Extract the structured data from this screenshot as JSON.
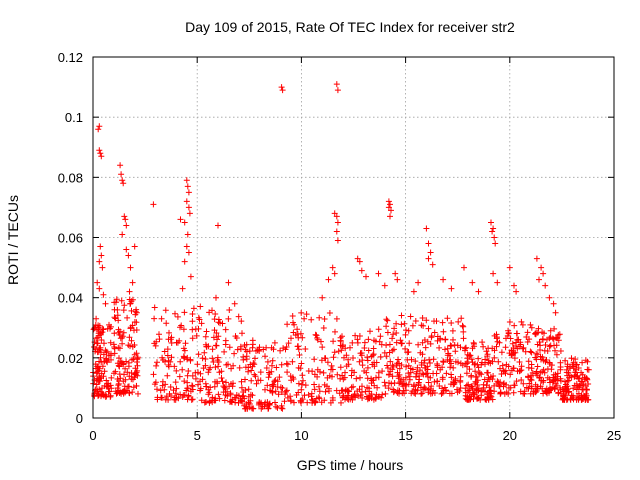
{
  "chart_data": {
    "type": "scatter",
    "title": "Day 109 of 2015, Rate Of TEC Index for receiver str2",
    "xlabel": "GPS time / hours",
    "ylabel": "ROTI / TECUs",
    "xlim": [
      0,
      25
    ],
    "ylim": [
      0,
      0.12
    ],
    "xticks": [
      0,
      5,
      10,
      15,
      20,
      25
    ],
    "xtick_labels": [
      "0",
      "5",
      "10",
      "15",
      "20",
      "25"
    ],
    "yticks": [
      0,
      0.02,
      0.04,
      0.06,
      0.08,
      0.1,
      0.12
    ],
    "ytick_labels": [
      "0",
      "0.02",
      "0.04",
      "0.06",
      "0.08",
      "0.1",
      "0.12"
    ],
    "grid": true,
    "marker": "plus",
    "color": "#ff0000",
    "series": [
      {
        "name": "ROTI",
        "points": [
          [
            0.25,
            0.096
          ],
          [
            0.3,
            0.097
          ],
          [
            0.3,
            0.089
          ],
          [
            0.35,
            0.088
          ],
          [
            0.4,
            0.087
          ],
          [
            0.35,
            0.057
          ],
          [
            0.4,
            0.054
          ],
          [
            0.3,
            0.052
          ],
          [
            0.45,
            0.05
          ],
          [
            0.2,
            0.045
          ],
          [
            0.3,
            0.043
          ],
          [
            0.5,
            0.041
          ],
          [
            0.6,
            0.038
          ],
          [
            0.15,
            0.033
          ],
          [
            0.1,
            0.03
          ],
          [
            1.3,
            0.084
          ],
          [
            1.35,
            0.081
          ],
          [
            1.4,
            0.079
          ],
          [
            1.45,
            0.078
          ],
          [
            1.5,
            0.067
          ],
          [
            1.55,
            0.066
          ],
          [
            1.6,
            0.064
          ],
          [
            1.4,
            0.061
          ],
          [
            1.6,
            0.056
          ],
          [
            1.7,
            0.054
          ],
          [
            2.0,
            0.057
          ],
          [
            1.8,
            0.05
          ],
          [
            1.9,
            0.045
          ],
          [
            1.75,
            0.042
          ],
          [
            2.1,
            0.035
          ],
          [
            2.9,
            0.071
          ],
          [
            4.2,
            0.066
          ],
          [
            4.5,
            0.079
          ],
          [
            4.55,
            0.077
          ],
          [
            4.6,
            0.075
          ],
          [
            4.5,
            0.072
          ],
          [
            4.6,
            0.07
          ],
          [
            4.65,
            0.068
          ],
          [
            4.4,
            0.065
          ],
          [
            4.55,
            0.061
          ],
          [
            4.5,
            0.057
          ],
          [
            4.6,
            0.055
          ],
          [
            4.4,
            0.052
          ],
          [
            4.7,
            0.047
          ],
          [
            4.3,
            0.043
          ],
          [
            6.0,
            0.064
          ],
          [
            6.5,
            0.045
          ],
          [
            5.9,
            0.04
          ],
          [
            6.8,
            0.038
          ],
          [
            9.05,
            0.11
          ],
          [
            9.1,
            0.109
          ],
          [
            11.7,
            0.111
          ],
          [
            11.75,
            0.109
          ],
          [
            11.6,
            0.068
          ],
          [
            11.7,
            0.067
          ],
          [
            11.75,
            0.065
          ],
          [
            11.7,
            0.062
          ],
          [
            11.75,
            0.059
          ],
          [
            11.5,
            0.05
          ],
          [
            11.6,
            0.048
          ],
          [
            11.3,
            0.046
          ],
          [
            11.0,
            0.04
          ],
          [
            12.7,
            0.053
          ],
          [
            12.8,
            0.052
          ],
          [
            12.9,
            0.049
          ],
          [
            13.1,
            0.047
          ],
          [
            13.7,
            0.048
          ],
          [
            14.2,
            0.072
          ],
          [
            14.25,
            0.071
          ],
          [
            14.2,
            0.07
          ],
          [
            14.3,
            0.069
          ],
          [
            14.25,
            0.067
          ],
          [
            14.5,
            0.048
          ],
          [
            14.6,
            0.046
          ],
          [
            14.0,
            0.044
          ],
          [
            16.0,
            0.063
          ],
          [
            16.1,
            0.058
          ],
          [
            16.2,
            0.055
          ],
          [
            16.1,
            0.053
          ],
          [
            16.3,
            0.051
          ],
          [
            16.8,
            0.046
          ],
          [
            17.2,
            0.043
          ],
          [
            15.6,
            0.045
          ],
          [
            15.4,
            0.042
          ],
          [
            17.8,
            0.05
          ],
          [
            18.2,
            0.045
          ],
          [
            18.5,
            0.042
          ],
          [
            19.1,
            0.065
          ],
          [
            19.2,
            0.063
          ],
          [
            19.15,
            0.062
          ],
          [
            19.25,
            0.06
          ],
          [
            19.3,
            0.058
          ],
          [
            19.2,
            0.048
          ],
          [
            19.4,
            0.045
          ],
          [
            20.0,
            0.05
          ],
          [
            20.2,
            0.044
          ],
          [
            20.3,
            0.042
          ],
          [
            21.3,
            0.053
          ],
          [
            21.5,
            0.05
          ],
          [
            21.6,
            0.048
          ],
          [
            21.4,
            0.046
          ],
          [
            21.7,
            0.044
          ],
          [
            21.9,
            0.04
          ],
          [
            22.1,
            0.038
          ],
          [
            22.2,
            0.035
          ]
        ],
        "bands": [
          {
            "x": [
              0.0,
              0.9
            ],
            "y": [
              0.007,
              0.031
            ]
          },
          {
            "x": [
              1.0,
              2.2
            ],
            "y": [
              0.008,
              0.04
            ]
          },
          {
            "x": [
              2.9,
              5.2
            ],
            "y": [
              0.006,
              0.038
            ]
          },
          {
            "x": [
              5.2,
              7.2
            ],
            "y": [
              0.005,
              0.036
            ]
          },
          {
            "x": [
              7.2,
              9.3
            ],
            "y": [
              0.003,
              0.026
            ]
          },
          {
            "x": [
              9.3,
              11.9
            ],
            "y": [
              0.005,
              0.035
            ]
          },
          {
            "x": [
              11.9,
              14.0
            ],
            "y": [
              0.006,
              0.03
            ]
          },
          {
            "x": [
              14.0,
              15.8
            ],
            "y": [
              0.008,
              0.035
            ]
          },
          {
            "x": [
              15.8,
              17.8
            ],
            "y": [
              0.008,
              0.034
            ]
          },
          {
            "x": [
              17.8,
              19.2
            ],
            "y": [
              0.006,
              0.026
            ]
          },
          {
            "x": [
              19.2,
              21.2
            ],
            "y": [
              0.008,
              0.032
            ]
          },
          {
            "x": [
              21.2,
              22.5
            ],
            "y": [
              0.008,
              0.03
            ]
          },
          {
            "x": [
              22.5,
              23.8
            ],
            "y": [
              0.006,
              0.02
            ]
          }
        ],
        "density": 1600
      }
    ]
  }
}
